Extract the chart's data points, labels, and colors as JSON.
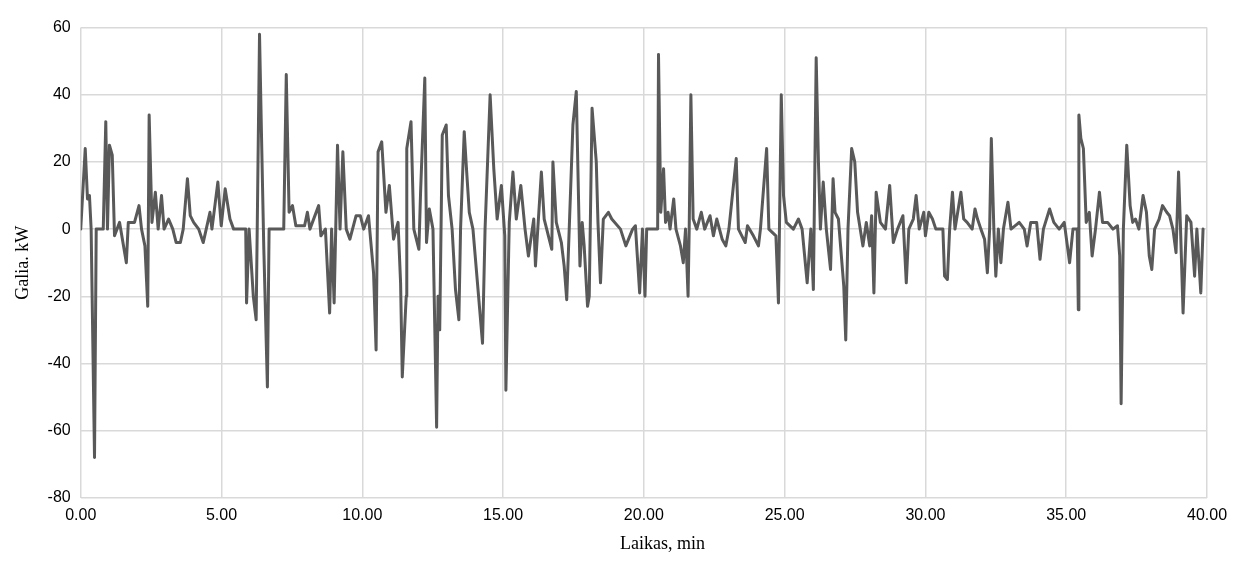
{
  "chart_data": {
    "type": "line",
    "xlabel": "Laikas, min",
    "ylabel": "Galia. kW",
    "x": [
      0,
      0.16,
      0.24,
      0.31,
      0.37,
      0.49,
      0.55,
      0.8,
      0.89,
      0.95,
      1.02,
      1.12,
      1.2,
      1.38,
      1.48,
      1.62,
      1.69,
      1.91,
      2.07,
      2.16,
      2.28,
      2.38,
      2.43,
      2.53,
      2.65,
      2.75,
      2.87,
      2.96,
      3.12,
      3.27,
      3.39,
      3.54,
      3.64,
      3.79,
      3.89,
      4.01,
      4.19,
      4.35,
      4.59,
      4.66,
      4.87,
      4.99,
      5.13,
      5.3,
      5.43,
      5.86,
      5.89,
      5.98,
      6.13,
      6.23,
      6.35,
      6.42,
      6.5,
      6.63,
      6.69,
      7.21,
      7.3,
      7.4,
      7.52,
      7.64,
      7.95,
      8.05,
      8.14,
      8.45,
      8.53,
      8.69,
      8.84,
      8.91,
      9.0,
      9.12,
      9.21,
      9.31,
      9.43,
      9.56,
      9.78,
      9.93,
      10.05,
      10.22,
      10.4,
      10.49,
      10.56,
      10.69,
      10.84,
      10.96,
      11.11,
      11.27,
      11.36,
      11.42,
      11.56,
      11.58,
      11.73,
      11.83,
      12.01,
      12.07,
      12.22,
      12.28,
      12.38,
      12.51,
      12.64,
      12.69,
      12.75,
      12.84,
      12.98,
      13.06,
      13.19,
      13.31,
      13.43,
      13.49,
      13.62,
      13.7,
      13.8,
      13.93,
      14.11,
      14.27,
      14.36,
      14.54,
      14.67,
      14.79,
      14.94,
      15.06,
      15.1,
      15.22,
      15.35,
      15.47,
      15.63,
      15.78,
      15.9,
      16.09,
      16.15,
      16.36,
      16.46,
      16.73,
      16.77,
      16.89,
      17.07,
      17.17,
      17.26,
      17.48,
      17.6,
      17.73,
      17.81,
      17.88,
      18.0,
      18.06,
      18.16,
      18.31,
      18.37,
      18.46,
      18.56,
      18.74,
      18.86,
      19.17,
      19.36,
      19.6,
      19.7,
      19.85,
      19.95,
      20.04,
      20.1,
      20.49,
      20.52,
      20.6,
      20.7,
      20.77,
      20.86,
      20.93,
      21.06,
      21.14,
      21.3,
      21.4,
      21.48,
      21.57,
      21.61,
      21.67,
      21.75,
      21.88,
      22.04,
      22.16,
      22.35,
      22.47,
      22.59,
      22.78,
      22.91,
      23.02,
      23.28,
      23.36,
      23.6,
      23.68,
      23.89,
      24.07,
      24.14,
      24.36,
      24.44,
      24.69,
      24.78,
      24.88,
      24.96,
      25.06,
      25.31,
      25.49,
      25.62,
      25.8,
      25.93,
      26.02,
      26.12,
      26.2,
      26.27,
      26.37,
      26.48,
      26.63,
      26.72,
      26.79,
      26.91,
      27.1,
      27.17,
      27.25,
      27.38,
      27.49,
      27.59,
      27.78,
      27.9,
      28.02,
      28.09,
      28.17,
      28.25,
      28.4,
      28.58,
      28.73,
      28.86,
      29.01,
      29.2,
      29.32,
      29.41,
      29.57,
      29.67,
      29.78,
      29.94,
      30.0,
      30.12,
      30.25,
      30.37,
      30.62,
      30.68,
      30.78,
      30.86,
      30.96,
      31.05,
      31.26,
      31.36,
      31.48,
      31.66,
      31.76,
      31.85,
      31.97,
      32.1,
      32.2,
      32.28,
      32.34,
      32.43,
      32.5,
      32.59,
      32.68,
      32.77,
      32.93,
      33.04,
      33.33,
      33.51,
      33.61,
      33.74,
      33.95,
      34.07,
      34.19,
      34.41,
      34.56,
      34.75,
      34.93,
      35.12,
      35.24,
      35.39,
      35.43,
      35.45,
      35.52,
      35.61,
      35.71,
      35.82,
      35.92,
      36.04,
      36.18,
      36.29,
      36.47,
      36.66,
      36.82,
      36.9,
      36.95,
      37.03,
      37.15,
      37.27,
      37.36,
      37.46,
      37.58,
      37.73,
      37.85,
      37.95,
      38.04,
      38.14,
      38.3,
      38.42,
      38.57,
      38.67,
      38.79,
      38.9,
      38.99,
      39.06,
      39.15,
      39.28,
      39.43,
      39.56,
      39.64,
      39.78,
      39.86
    ],
    "series": [
      {
        "color": "#595959",
        "values": [
          0,
          24,
          9,
          10,
          0,
          -68,
          0,
          0,
          32,
          0,
          25,
          22,
          -2,
          2,
          -3,
          -10,
          2,
          2,
          7,
          0,
          -5,
          -23,
          34,
          2,
          11,
          0,
          10,
          0,
          3,
          0,
          -4,
          -4,
          0,
          15,
          4,
          2,
          0,
          -4,
          5,
          0,
          14,
          1,
          12,
          3,
          0,
          0,
          -22,
          0,
          -20,
          -27,
          58,
          28,
          -5,
          -47,
          0,
          0,
          46,
          5,
          7,
          1,
          1,
          5,
          0,
          7,
          -2,
          0,
          -25,
          0,
          -22,
          25,
          0,
          23,
          0,
          -3,
          4,
          4,
          0,
          4,
          -13,
          -36,
          23,
          26,
          5,
          13,
          -3,
          2,
          -16,
          -44,
          -20,
          24,
          32,
          0,
          -6,
          11,
          45,
          -4,
          6,
          0,
          -59,
          -20,
          -30,
          28,
          31,
          10,
          0,
          -18,
          -27,
          0,
          29,
          18,
          5,
          0,
          -18,
          -34,
          0,
          40,
          18,
          3,
          13,
          -2,
          -48,
          2,
          17,
          3,
          13,
          0,
          -8,
          3,
          -11,
          17,
          3,
          -6,
          20,
          2,
          -4,
          -11,
          -21,
          31,
          41,
          -11,
          2,
          -5,
          -23,
          -20,
          36,
          20,
          2,
          -16,
          3,
          5,
          3,
          0,
          -5,
          0,
          1,
          -19,
          0,
          -20,
          0,
          0,
          52,
          5,
          18,
          2,
          5,
          0,
          9,
          0,
          -5,
          -10,
          0,
          -20,
          0,
          40,
          3,
          0,
          5,
          0,
          4,
          -2,
          3,
          -3,
          -5,
          0,
          21,
          0,
          -4,
          1,
          -2,
          -5,
          0,
          24,
          0,
          -2,
          -22,
          40,
          10,
          2,
          0,
          3,
          0,
          -16,
          0,
          -18,
          51,
          20,
          0,
          14,
          0,
          -12,
          15,
          5,
          3,
          -17,
          -33,
          0,
          24,
          20,
          5,
          -5,
          2,
          -5,
          4,
          -19,
          11,
          2,
          0,
          13,
          -4,
          0,
          4,
          -16,
          0,
          3,
          10,
          0,
          5,
          -2,
          5,
          3,
          0,
          0,
          -14,
          -15,
          0,
          11,
          0,
          11,
          3,
          2,
          0,
          6,
          3,
          0,
          -3,
          -13,
          0,
          27,
          0,
          -14,
          0,
          -10,
          0,
          8,
          0,
          2,
          0,
          -5,
          2,
          2,
          -9,
          0,
          6,
          2,
          0,
          2,
          -10,
          0,
          0,
          -24,
          34,
          27,
          24,
          2,
          5,
          -8,
          0,
          11,
          2,
          2,
          0,
          1,
          -8,
          -52,
          0,
          25,
          7,
          2,
          3,
          0,
          10,
          5,
          -8,
          -12,
          0,
          3,
          7,
          5,
          4,
          0,
          -7,
          17,
          0,
          -25,
          4,
          2,
          -14,
          0,
          -19,
          0
        ]
      }
    ],
    "xlim": [
      0,
      40
    ],
    "xticks": [
      {
        "value": 0,
        "label": "0.00"
      },
      {
        "value": 5,
        "label": "5.00"
      },
      {
        "value": 10,
        "label": "10.00"
      },
      {
        "value": 15,
        "label": "15.00"
      },
      {
        "value": 20,
        "label": "20.00"
      },
      {
        "value": 25,
        "label": "25.00"
      },
      {
        "value": 30,
        "label": "30.00"
      },
      {
        "value": 35,
        "label": "35.00"
      },
      {
        "value": 40,
        "label": "40.00"
      }
    ],
    "ylim": [
      -80,
      60
    ],
    "yticks": [
      -80,
      -60,
      -40,
      -20,
      0,
      20,
      40,
      60
    ],
    "grid": true,
    "marker": "none",
    "line_style": "solid"
  }
}
